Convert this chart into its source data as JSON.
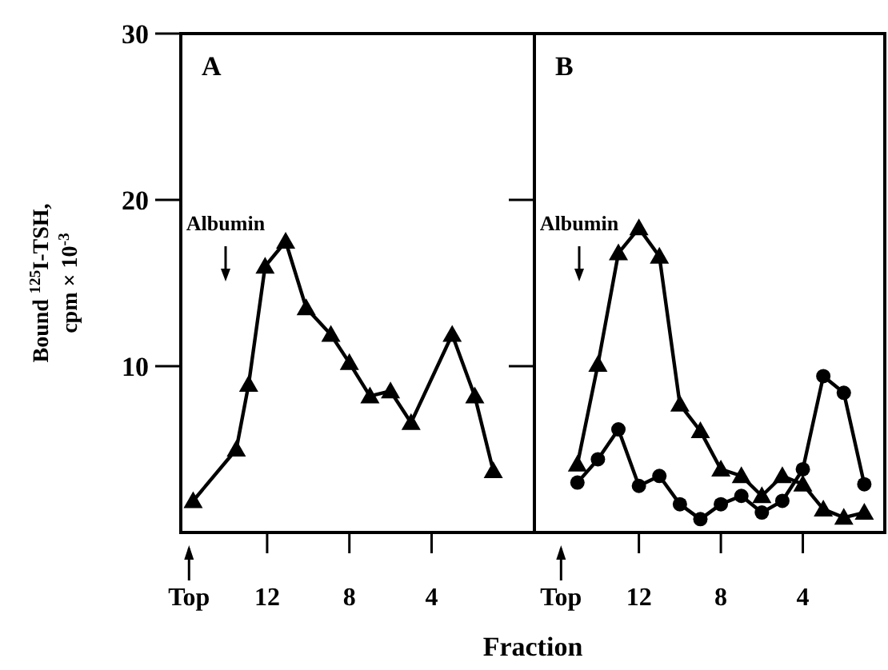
{
  "chart_data": [
    {
      "type": "line",
      "title": "A",
      "ylabel": "Bound $^{125}$I-TSH, cpm × 10$^{-3}$",
      "xlim": [
        16.2,
        -1
      ],
      "ylim": [
        0,
        30
      ],
      "yticks": [
        10,
        20,
        30
      ],
      "xticks": [
        {
          "value": 15.8,
          "label": "Top"
        },
        12,
        8,
        4
      ],
      "series": [
        {
          "color": "#000000",
          "marker": "triangle",
          "x": [
            15.6,
            13.5,
            12.9,
            12.1,
            11.1,
            10.1,
            8.9,
            8.0,
            7.0,
            6.0,
            5.0,
            3.0,
            1.9,
            1.0
          ],
          "values": [
            1.9,
            5.0,
            8.9,
            16.0,
            17.5,
            13.5,
            11.9,
            10.2,
            8.2,
            8.5,
            6.6,
            11.9,
            8.2,
            3.7
          ]
        }
      ],
      "annotations": [
        "Albumin"
      ]
    },
    {
      "type": "line",
      "title": "B",
      "xlabel": "Fraction",
      "tick_labels": "x",
      "xlim": [
        17.1,
        0
      ],
      "ylim": [
        0,
        30
      ],
      "yticks": [
        10,
        20,
        30
      ],
      "xticks": [
        {
          "value": 15.8,
          "label": "Top"
        },
        12,
        8,
        4
      ],
      "series": [
        {
          "color": "#000000",
          "marker": "triangle",
          "x": [
            15,
            14,
            13,
            12,
            11,
            10,
            9,
            8,
            7,
            6,
            5,
            4,
            3,
            2,
            1
          ],
          "values": [
            4.1,
            10.1,
            16.8,
            18.3,
            16.6,
            7.7,
            6.1,
            3.8,
            3.4,
            2.2,
            3.4,
            2.9,
            1.4,
            0.9,
            1.2
          ]
        },
        {
          "color": "#000000",
          "marker": "circle",
          "x": [
            15,
            14,
            13,
            12,
            11,
            10,
            9,
            8,
            7,
            6,
            5,
            4,
            3,
            2,
            1
          ],
          "values": [
            3.0,
            4.4,
            6.2,
            2.8,
            3.4,
            1.7,
            0.8,
            1.7,
            2.2,
            1.2,
            1.9,
            3.8,
            9.4,
            8.4,
            2.9
          ]
        }
      ],
      "annotations": [
        "Albumin"
      ]
    }
  ]
}
